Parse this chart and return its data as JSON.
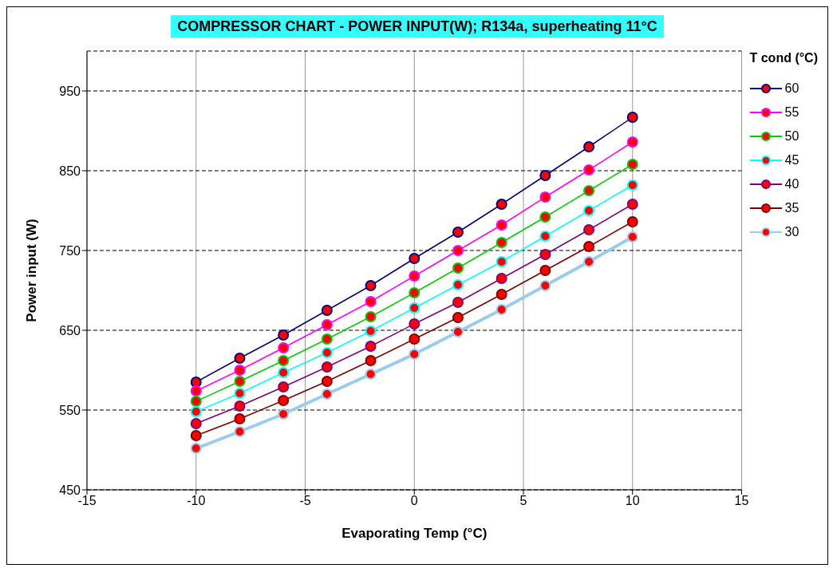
{
  "chart_data": {
    "type": "line",
    "title": "COMPRESSOR CHART - POWER INPUT(W); R134a, superheating 11°C",
    "xlabel": "Evaporating Temp (°C)",
    "ylabel": "Power input (W)",
    "legend_title": "T cond (°C)",
    "x": [
      -10,
      -8,
      -6,
      -4,
      -2,
      0,
      2,
      4,
      6,
      8,
      10
    ],
    "series": [
      {
        "name": "60",
        "color": "#000080",
        "values": [
          585,
          615,
          644,
          675,
          706,
          740,
          773,
          808,
          844,
          880,
          917
        ]
      },
      {
        "name": "55",
        "color": "#ff00ff",
        "values": [
          574,
          600,
          628,
          657,
          686,
          718,
          750,
          782,
          817,
          851,
          886
        ]
      },
      {
        "name": "50",
        "color": "#00cc00",
        "values": [
          561,
          586,
          612,
          639,
          667,
          697,
          728,
          760,
          792,
          825,
          858
        ]
      },
      {
        "name": "45",
        "color": "#00ffff",
        "values": [
          548,
          571,
          597,
          622,
          649,
          678,
          707,
          736,
          768,
          800,
          832
        ]
      },
      {
        "name": "40",
        "color": "#800080",
        "values": [
          533,
          555,
          579,
          604,
          630,
          658,
          685,
          715,
          745,
          776,
          808
        ]
      },
      {
        "name": "35",
        "color": "#800000",
        "values": [
          518,
          539,
          562,
          586,
          612,
          639,
          666,
          695,
          725,
          755,
          786
        ]
      },
      {
        "name": "30",
        "color": "#99ccee",
        "values": [
          502,
          523,
          545,
          570,
          595,
          620,
          648,
          676,
          706,
          736,
          767
        ]
      }
    ],
    "xlim": [
      -15,
      15
    ],
    "xticks": [
      -15,
      -10,
      -5,
      0,
      5,
      10,
      15
    ],
    "ylim": [
      450,
      1000
    ],
    "yticks": [
      450,
      550,
      650,
      750,
      850,
      950
    ],
    "grid": true,
    "legend": "right",
    "marker": "circle",
    "line_style": "solid"
  }
}
